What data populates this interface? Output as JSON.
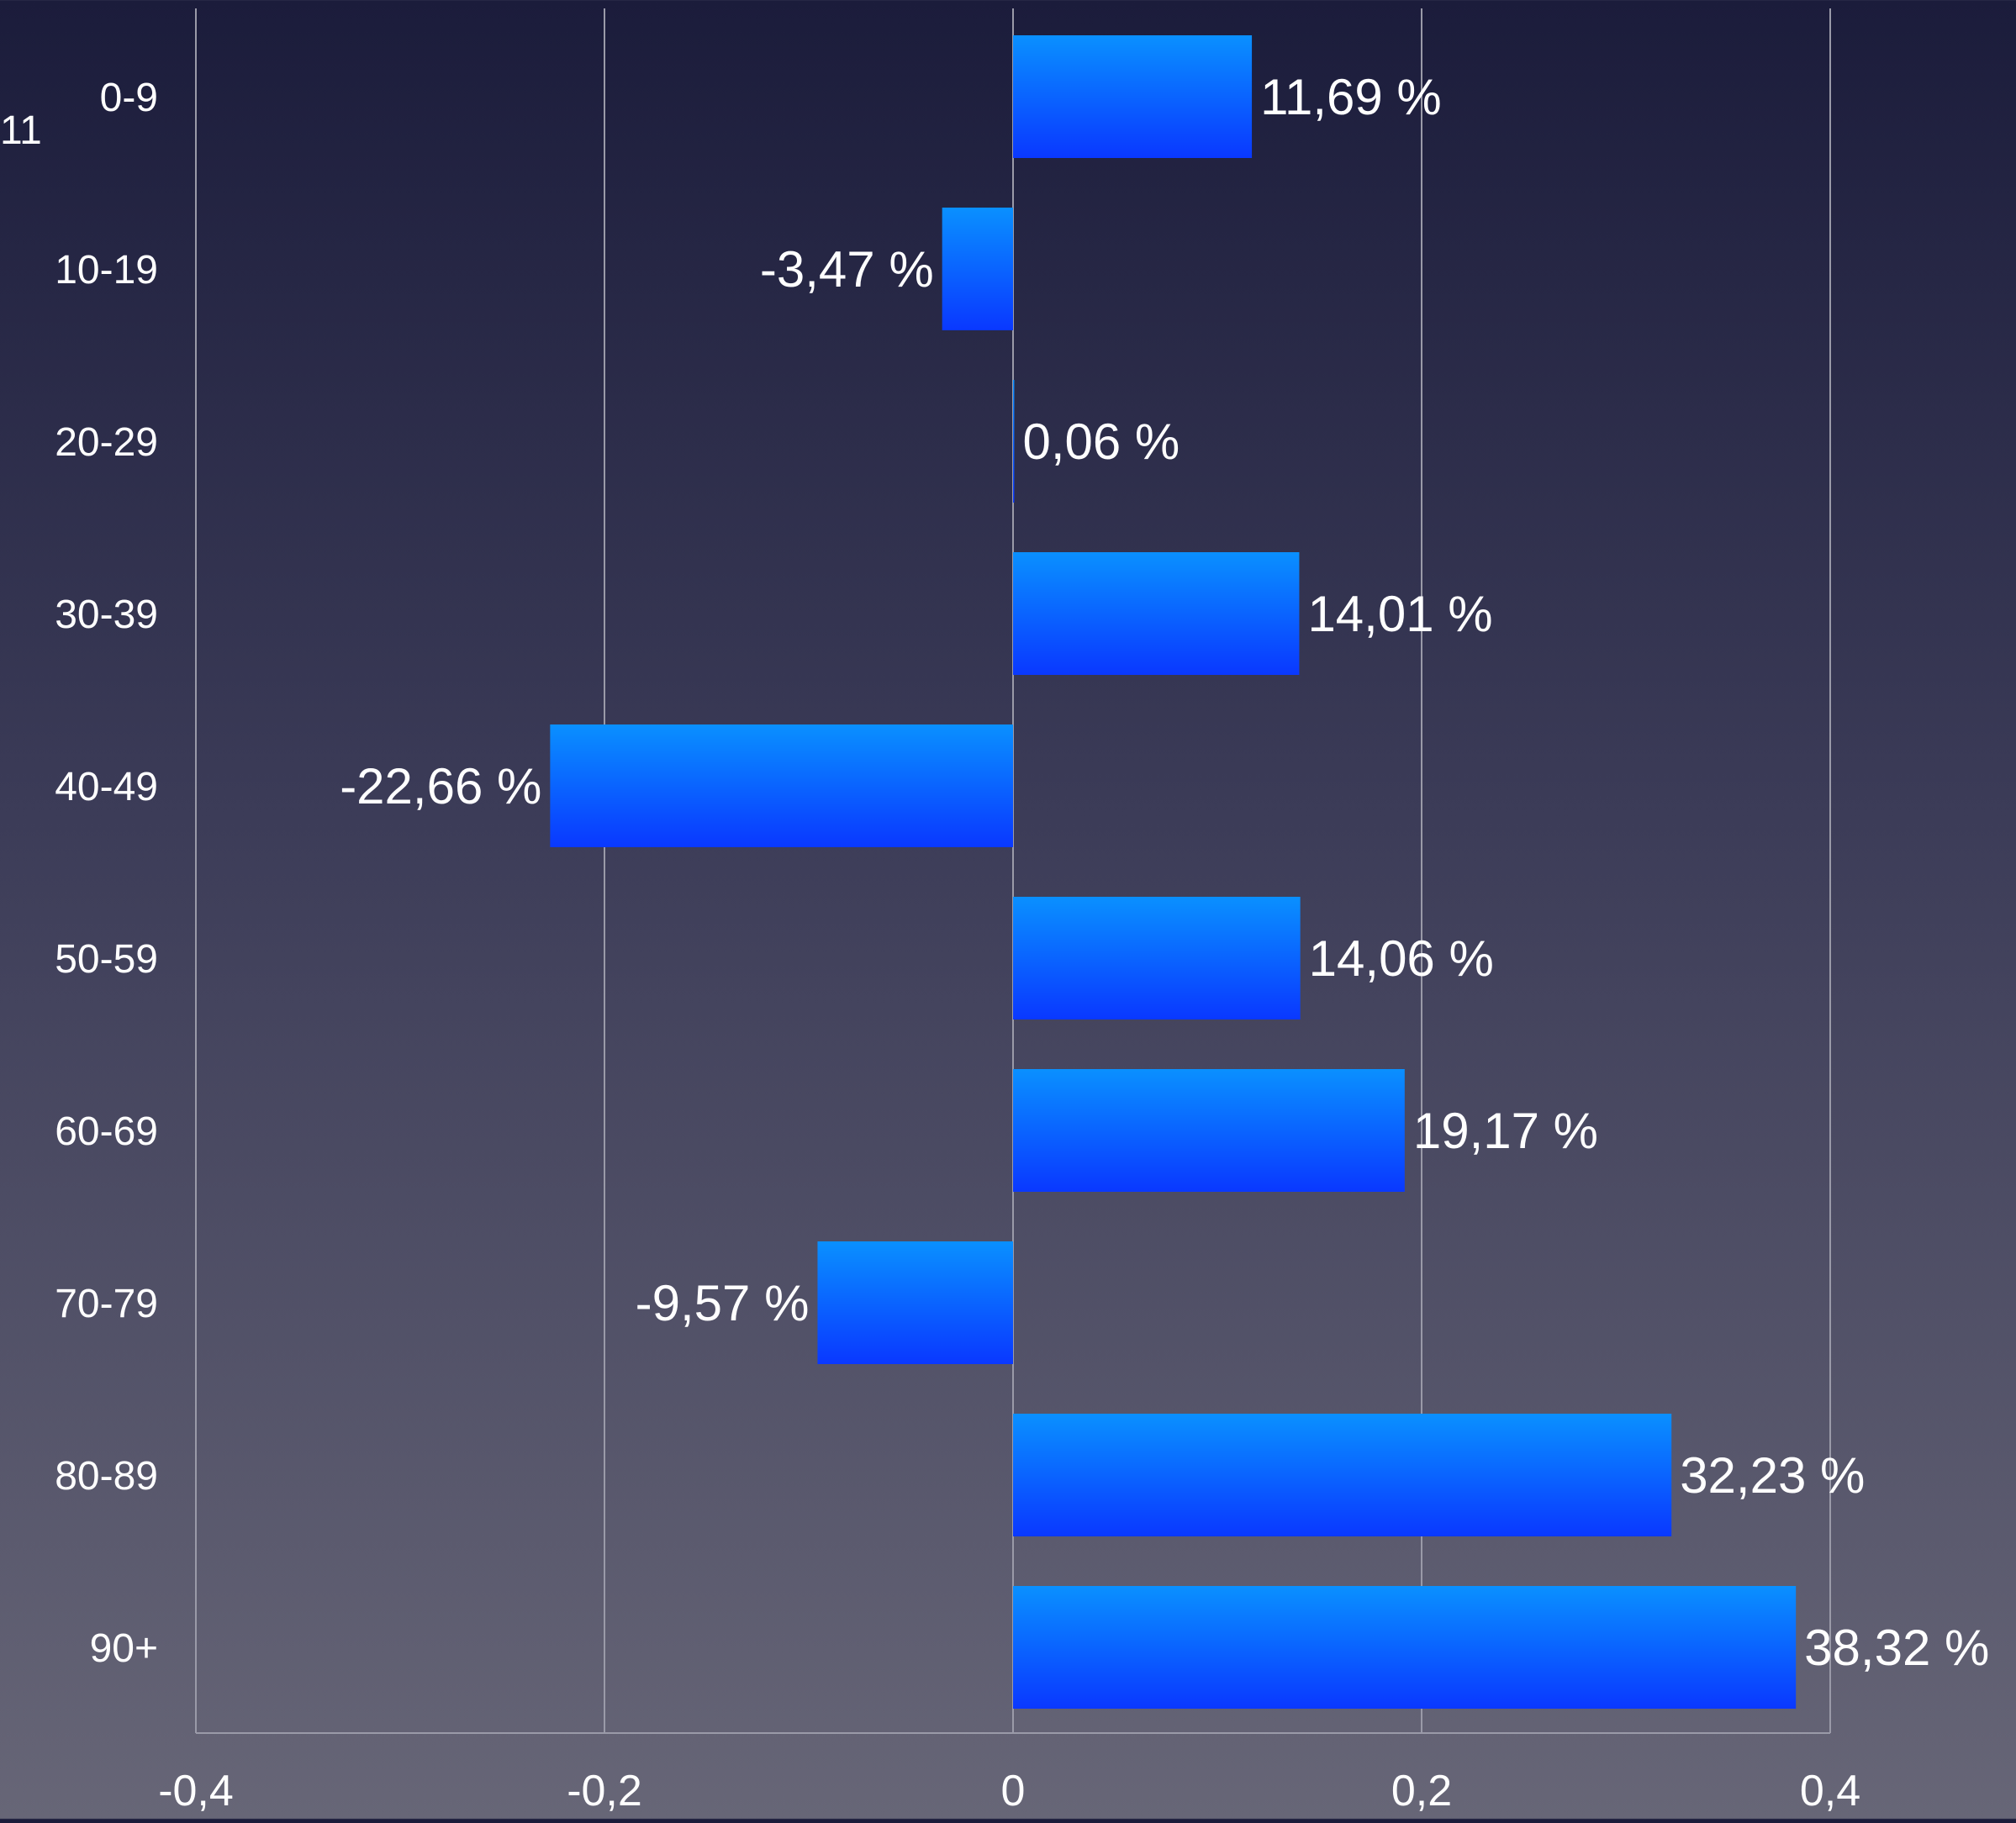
{
  "corner_label": "11",
  "chart_data": {
    "type": "bar",
    "orientation": "horizontal",
    "categories": [
      "0-9",
      "10-19",
      "20-29",
      "30-39",
      "40-49",
      "50-59",
      "60-69",
      "70-79",
      "80-89",
      "90+"
    ],
    "values": [
      0.1169,
      -0.0347,
      0.0006,
      0.1401,
      -0.2266,
      0.1406,
      0.1917,
      -0.0957,
      0.3223,
      0.3832
    ],
    "data_labels": [
      "11,69 %",
      "-3,47 %",
      "0,06 %",
      "14,01 %",
      "-22,66 %",
      "14,06 %",
      "19,17 %",
      "-9,57 %",
      "32,23 %",
      "38,32 %"
    ],
    "x_ticks": [
      -0.4,
      -0.2,
      0,
      0.2,
      0.4
    ],
    "x_tick_labels": [
      "-0,4",
      "-0,2",
      "0",
      "0,2",
      "0,4"
    ],
    "xlim": [
      -0.4,
      0.4
    ],
    "title": "",
    "xlabel": "",
    "ylabel": "",
    "grid": "vertical",
    "legend": "none",
    "colors": {
      "bar_top": "#0a90ff",
      "bar_bottom": "#0a38ff",
      "grid": "#9a9aa8",
      "text": "#ffffff"
    }
  }
}
